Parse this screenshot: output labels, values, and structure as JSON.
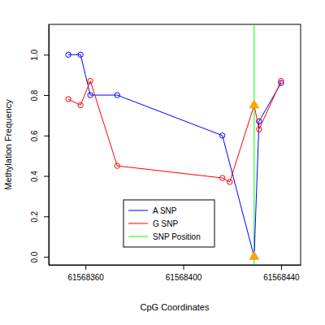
{
  "chart_data": {
    "type": "line",
    "x_label": "CpG Coordinates",
    "y_label": "Methylation Frequency",
    "series": [
      {
        "name": "A SNP",
        "color": "#0000ff",
        "marker": "circle",
        "x": [
          61568353,
          61568358,
          61568362,
          61568373,
          61568416,
          61568429,
          61568431,
          61568440
        ],
        "values": [
          1.0,
          1.0,
          0.8,
          0.8,
          0.6,
          0.0,
          0.67,
          0.86
        ]
      },
      {
        "name": "G SNP",
        "color": "#ff0000",
        "marker": "circle",
        "x": [
          61568353,
          61568358,
          61568362,
          61568373,
          61568416,
          61568419,
          61568429,
          61568431,
          61568440
        ],
        "values": [
          0.78,
          0.75,
          0.87,
          0.45,
          0.39,
          0.37,
          0.75,
          0.63,
          0.87
        ]
      }
    ],
    "snp_name": "SNP Position",
    "snp_color": "#00ff00",
    "snp_position": 61568429,
    "snp_values": [
      0.75,
      0.0
    ],
    "snp_marker_color": "#ffa500",
    "xlim": [
      61568345,
      61568448
    ],
    "xticks": [
      61568360,
      61568400,
      61568440
    ],
    "ylim": [
      -0.04,
      1.15
    ],
    "yticks": [
      {
        "value": 0,
        "label": "0.0"
      },
      {
        "value": 0.2,
        "label": "0.2"
      },
      {
        "value": 0.4,
        "label": "0.4"
      },
      {
        "value": 0.6,
        "label": "0.6"
      },
      {
        "value": 0.8,
        "label": "0.8"
      },
      {
        "value": 1.0,
        "label": "1.0"
      }
    ],
    "legend": "bottom",
    "grid": false
  }
}
